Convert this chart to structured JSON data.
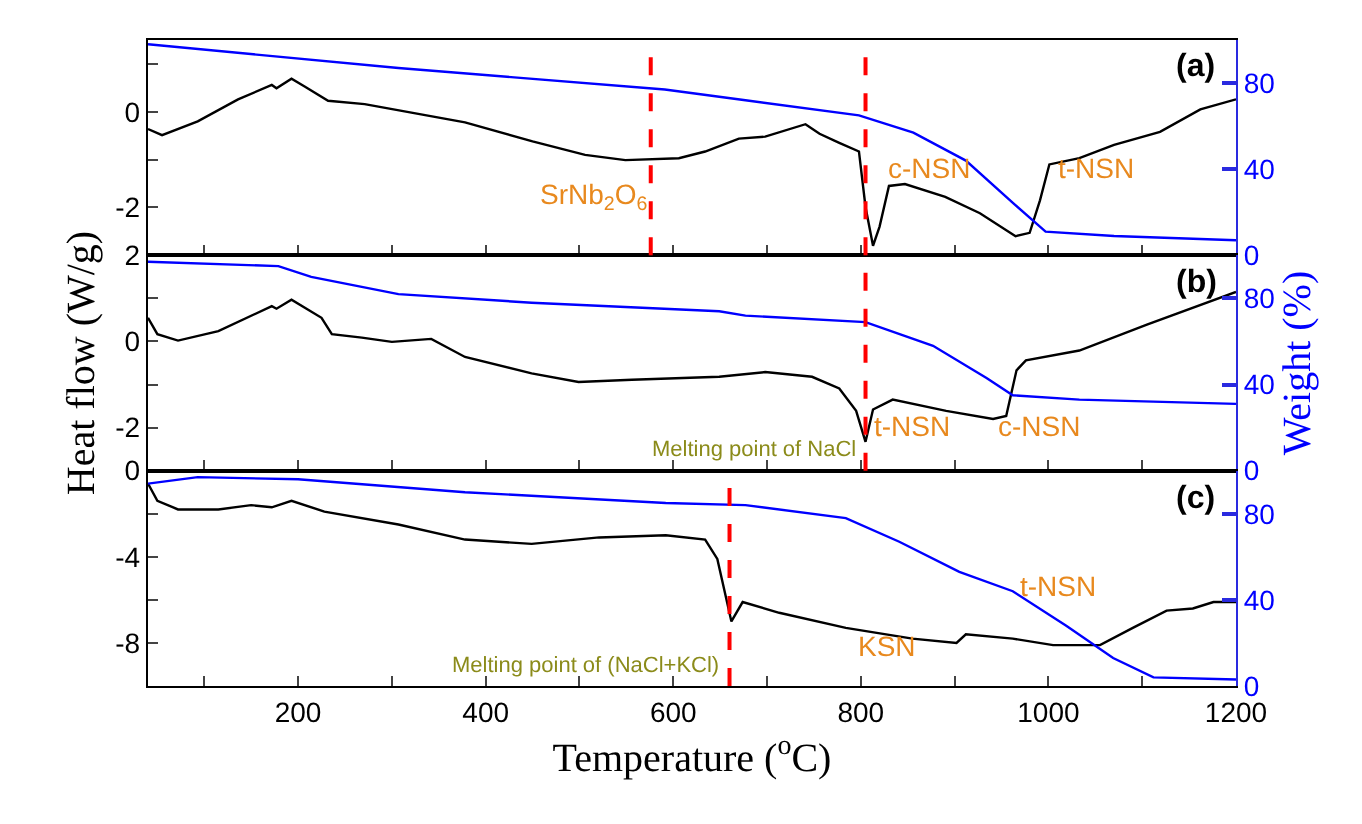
{
  "chart_data": [
    {
      "type": "line",
      "xlim": [
        40,
        1200
      ],
      "xticks": [
        100,
        200,
        300,
        400,
        500,
        600,
        700,
        800,
        900,
        1000,
        1100,
        1200
      ],
      "ylim": [
        -3,
        1.5
      ],
      "yticks": [
        {
          "value": 1,
          "label": null
        },
        0,
        {
          "value": -1,
          "label": null
        },
        -2
      ],
      "y2lim": [
        0,
        100
      ],
      "y2ticks": [
        0,
        40,
        80
      ],
      "tick_labels": "y",
      "grid": false,
      "marker": "none",
      "line_style": "solid",
      "series": [
        {
          "color": "#000000",
          "x": [
            40,
            55,
            93,
            136,
            172,
            177,
            193,
            207,
            232,
            271,
            378,
            450,
            506,
            549,
            606,
            634,
            670,
            698,
            741,
            756,
            777,
            798,
            805,
            813,
            820,
            830,
            847,
            890,
            927,
            965,
            980,
            991,
            1001,
            1033,
            1070,
            1119,
            1162,
            1200
          ],
          "values": [
            -0.36,
            -0.49,
            -0.2,
            0.26,
            0.56,
            0.49,
            0.69,
            0.53,
            0.23,
            0.16,
            -0.22,
            -0.62,
            -0.9,
            -1.01,
            -0.97,
            -0.83,
            -0.56,
            -0.52,
            -0.26,
            -0.46,
            -0.65,
            -0.83,
            -1.99,
            -2.8,
            -2.4,
            -1.55,
            -1.51,
            -1.78,
            -2.12,
            -2.6,
            -2.53,
            -1.85,
            -1.1,
            -0.97,
            -0.69,
            -0.42,
            0.05,
            0.26
          ]
        },
        {
          "color": "#0000ff",
          "axis": "y2",
          "x": [
            40,
            307,
            591,
            677,
            798,
            856,
            912,
            963,
            997,
            1070,
            1200
          ],
          "values": [
            98,
            87,
            77,
            72,
            65,
            57,
            44,
            24,
            11,
            9,
            7
          ]
        }
      ],
      "ref_lines": [
        {
          "axis": "x",
          "value": 576,
          "color": "#ff0000",
          "line_style": "dashed"
        },
        {
          "axis": "x",
          "value": 805,
          "color": "#ff0000",
          "line_style": "dashed"
        }
      ],
      "annotations": [
        "SrNb$_{2}$O$_{6}$",
        "c-NSN",
        "t-NSN",
        "(a)"
      ]
    },
    {
      "type": "line",
      "xlim": [
        40,
        1200
      ],
      "xticks": [
        100,
        200,
        300,
        400,
        500,
        600,
        700,
        800,
        900,
        1000,
        1100,
        1200
      ],
      "ylim": [
        -3,
        2
      ],
      "yticks": [
        2,
        {
          "value": 1,
          "label": null
        },
        0,
        {
          "value": -1,
          "label": null
        },
        -2
      ],
      "y2lim": [
        0,
        100
      ],
      "y2ticks": [
        0,
        40,
        80
      ],
      "ylabel": "Heat flow (W/g)",
      "y2label": "Weight (%)",
      "tick_labels": "y",
      "grid": false,
      "marker": "none",
      "line_style": "solid",
      "series": [
        {
          "color": "#000000",
          "x": [
            40,
            50,
            72,
            115,
            172,
            177,
            193,
            225,
            236,
            268,
            300,
            342,
            378,
            449,
            499,
            556,
            649,
            698,
            748,
            777,
            795,
            805,
            813,
            834,
            891,
            941,
            955,
            966,
            976,
            1033,
            1105,
            1200
          ],
          "values": [
            0.55,
            0.17,
            0.02,
            0.24,
            0.82,
            0.76,
            0.97,
            0.55,
            0.17,
            0.09,
            -0.01,
            0.06,
            -0.36,
            -0.74,
            -0.94,
            -0.89,
            -0.82,
            -0.71,
            -0.82,
            -1.09,
            -1.61,
            -2.33,
            -1.58,
            -1.35,
            -1.61,
            -1.8,
            -1.73,
            -0.67,
            -0.44,
            -0.21,
            0.39,
            1.15
          ]
        },
        {
          "color": "#0000ff",
          "axis": "y2",
          "x": [
            40,
            179,
            214,
            307,
            449,
            649,
            677,
            805,
            877,
            934,
            962,
            1033,
            1200
          ],
          "values": [
            97,
            95,
            90,
            82,
            78,
            74,
            72,
            69,
            58,
            43,
            35,
            33,
            31
          ]
        }
      ],
      "ref_lines": [
        {
          "axis": "x",
          "value": 805,
          "color": "#ff0000",
          "line_style": "dashed",
          "label": "Melting point of NaCl"
        }
      ],
      "annotations": [
        "t-NSN",
        "c-NSN",
        "(b)"
      ]
    },
    {
      "type": "line",
      "xlim": [
        40,
        1200
      ],
      "xticks": [
        {
          "value": 100,
          "label": null
        },
        {
          "value": 200,
          "label": "200"
        },
        {
          "value": 300,
          "label": null
        },
        {
          "value": 400,
          "label": "400"
        },
        {
          "value": 500,
          "label": null
        },
        {
          "value": 600,
          "label": "600"
        },
        {
          "value": 700,
          "label": null
        },
        {
          "value": 800,
          "label": "800"
        },
        {
          "value": 900,
          "label": null
        },
        {
          "value": 1000,
          "label": "1000"
        },
        {
          "value": 1100,
          "label": null
        },
        {
          "value": 1200,
          "label": "1200"
        }
      ],
      "ylim": [
        -10,
        0
      ],
      "yticks": [
        0,
        {
          "value": -2,
          "label": null
        },
        -4,
        {
          "value": -6,
          "label": null
        },
        -8
      ],
      "y2lim": [
        0,
        100
      ],
      "y2ticks": [
        0,
        40,
        80
      ],
      "xlabel": "Temperature ($^{o}$C)",
      "grid": false,
      "marker": "none",
      "line_style": "solid",
      "series": [
        {
          "color": "#000000",
          "x": [
            40,
            50,
            72,
            115,
            150,
            172,
            193,
            228,
            307,
            378,
            449,
            521,
            592,
            634,
            647,
            662,
            674,
            713,
            784,
            855,
            902,
            912,
            962,
            1005,
            1055,
            1090,
            1126,
            1154,
            1176,
            1200
          ],
          "values": [
            -0.6,
            -1.4,
            -1.8,
            -1.8,
            -1.6,
            -1.7,
            -1.4,
            -1.9,
            -2.5,
            -3.2,
            -3.4,
            -3.1,
            -3,
            -3.2,
            -4.1,
            -7,
            -6.1,
            -6.6,
            -7.3,
            -7.8,
            -8,
            -7.6,
            -7.8,
            -8.1,
            -8.1,
            -7.3,
            -6.5,
            -6.4,
            -6.1,
            -6.1
          ]
        },
        {
          "color": "#0000ff",
          "axis": "y2",
          "x": [
            40,
            93,
            200,
            378,
            592,
            677,
            784,
            841,
            905,
            962,
            1019,
            1069,
            1112,
            1200
          ],
          "values": [
            94,
            97,
            96,
            90,
            85,
            84,
            78,
            67,
            53,
            44,
            28,
            13,
            4,
            3
          ]
        }
      ],
      "ref_lines": [
        {
          "axis": "x",
          "value": 660,
          "color": "#ff0000",
          "line_style": "dashed",
          "label": "Melting point of (NaCl+KCl)"
        }
      ],
      "annotations": [
        "KSN",
        "t-NSN",
        "(c)"
      ]
    }
  ]
}
